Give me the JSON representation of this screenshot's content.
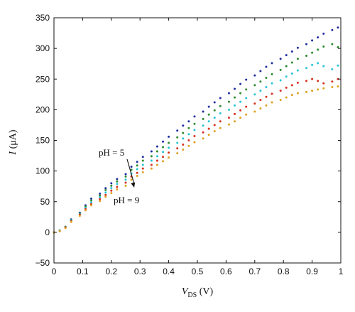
{
  "chart_data": {
    "type": "scatter",
    "title": "",
    "xlabel_main": "V",
    "xlabel_sub": "DS",
    "xlabel_unit": " (V)",
    "ylabel_main": "I",
    "ylabel_unit": " (μA)",
    "xlim": [
      0,
      1
    ],
    "ylim": [
      -50,
      350
    ],
    "xticks": [
      0,
      0.1,
      0.2,
      0.3,
      0.4,
      0.5,
      0.6,
      0.7,
      0.8,
      0.9,
      1
    ],
    "xtick_labels": [
      "0",
      "0.1",
      "0.2",
      "0.3",
      "0.4",
      "0.5",
      "0.6",
      "0.7",
      "0.8",
      "0.9",
      "1"
    ],
    "yticks": [
      -50,
      0,
      50,
      100,
      150,
      200,
      250,
      300,
      350
    ],
    "ytick_labels": [
      "−50",
      "0",
      "50",
      "100",
      "150",
      "200",
      "250",
      "300",
      "350"
    ],
    "grid": false,
    "annotations": {
      "ph_start": "pH = 5",
      "ph_end": "pH = 9"
    },
    "series": [
      {
        "color": "#1f2f9e",
        "x": [
          0,
          0.02,
          0.04,
          0.06,
          0.09,
          0.11,
          0.13,
          0.16,
          0.18,
          0.2,
          0.22,
          0.25,
          0.27,
          0.29,
          0.31,
          0.34,
          0.36,
          0.38,
          0.4,
          0.43,
          0.45,
          0.47,
          0.49,
          0.52,
          0.54,
          0.56,
          0.58,
          0.61,
          0.63,
          0.65,
          0.67,
          0.7,
          0.72,
          0.74,
          0.76,
          0.79,
          0.81,
          0.83,
          0.85,
          0.88,
          0.9,
          0.92,
          0.94,
          0.97,
          0.99
        ],
        "y": [
          0,
          3,
          9,
          21,
          32,
          44,
          55,
          63,
          72,
          80,
          87,
          95,
          107,
          115,
          123,
          132,
          140,
          148,
          156,
          166,
          174,
          181,
          189,
          197,
          205,
          212,
          219,
          227,
          234,
          242,
          249,
          256,
          263,
          270,
          276,
          283,
          289,
          295,
          301,
          307,
          313,
          318,
          324,
          330,
          334
        ]
      },
      {
        "color": "#2d8a2d",
        "x": [
          0,
          0.02,
          0.04,
          0.06,
          0.09,
          0.11,
          0.13,
          0.16,
          0.18,
          0.2,
          0.22,
          0.25,
          0.27,
          0.29,
          0.31,
          0.34,
          0.36,
          0.38,
          0.4,
          0.43,
          0.45,
          0.47,
          0.49,
          0.52,
          0.54,
          0.56,
          0.58,
          0.61,
          0.63,
          0.65,
          0.67,
          0.7,
          0.72,
          0.74,
          0.76,
          0.79,
          0.81,
          0.83,
          0.85,
          0.88,
          0.9,
          0.92,
          0.94,
          0.97,
          0.99
        ],
        "y": [
          0,
          3,
          9,
          20,
          31,
          42,
          52,
          60,
          69,
          76,
          83,
          91,
          102,
          109,
          117,
          124,
          132,
          139,
          146,
          155,
          162,
          170,
          177,
          185,
          192,
          199,
          206,
          213,
          220,
          227,
          233,
          240,
          246,
          252,
          258,
          265,
          271,
          277,
          283,
          288,
          293,
          298,
          303,
          307,
          302
        ]
      },
      {
        "color": "#25c4d6",
        "x": [
          0,
          0.02,
          0.04,
          0.06,
          0.09,
          0.11,
          0.13,
          0.16,
          0.18,
          0.2,
          0.22,
          0.25,
          0.27,
          0.29,
          0.31,
          0.34,
          0.36,
          0.38,
          0.4,
          0.43,
          0.45,
          0.47,
          0.49,
          0.52,
          0.54,
          0.56,
          0.58,
          0.61,
          0.63,
          0.65,
          0.67,
          0.7,
          0.72,
          0.74,
          0.76,
          0.79,
          0.81,
          0.83,
          0.85,
          0.88,
          0.9,
          0.92,
          0.94,
          0.97,
          0.99
        ],
        "y": [
          0,
          3,
          8,
          19,
          30,
          40,
          49,
          57,
          65,
          72,
          79,
          86,
          96,
          103,
          110,
          117,
          124,
          131,
          138,
          146,
          153,
          160,
          167,
          174,
          181,
          187,
          194,
          200,
          207,
          213,
          219,
          225,
          231,
          237,
          243,
          248,
          254,
          259,
          264,
          268,
          273,
          276,
          271,
          266,
          272
        ]
      },
      {
        "color": "#d63020",
        "x": [
          0,
          0.02,
          0.04,
          0.06,
          0.09,
          0.11,
          0.13,
          0.16,
          0.18,
          0.2,
          0.22,
          0.25,
          0.27,
          0.29,
          0.31,
          0.34,
          0.36,
          0.38,
          0.4,
          0.43,
          0.45,
          0.47,
          0.49,
          0.52,
          0.54,
          0.56,
          0.58,
          0.61,
          0.63,
          0.65,
          0.67,
          0.7,
          0.72,
          0.74,
          0.76,
          0.79,
          0.81,
          0.83,
          0.85,
          0.88,
          0.9,
          0.92,
          0.94,
          0.97,
          0.99
        ],
        "y": [
          0,
          2,
          8,
          18,
          29,
          38,
          46,
          54,
          61,
          68,
          74,
          81,
          91,
          97,
          104,
          110,
          117,
          123,
          130,
          137,
          143,
          150,
          157,
          163,
          169,
          175,
          181,
          187,
          193,
          199,
          205,
          210,
          216,
          221,
          226,
          231,
          236,
          240,
          244,
          247,
          250,
          247,
          243,
          246,
          250
        ]
      },
      {
        "color": "#e0a020",
        "x": [
          0,
          0.02,
          0.04,
          0.06,
          0.09,
          0.11,
          0.13,
          0.16,
          0.18,
          0.2,
          0.22,
          0.25,
          0.27,
          0.29,
          0.31,
          0.34,
          0.36,
          0.38,
          0.4,
          0.43,
          0.45,
          0.47,
          0.49,
          0.52,
          0.54,
          0.56,
          0.58,
          0.61,
          0.63,
          0.65,
          0.67,
          0.7,
          0.72,
          0.74,
          0.76,
          0.79,
          0.81,
          0.83,
          0.85,
          0.88,
          0.9,
          0.92,
          0.94,
          0.97,
          0.99
        ],
        "y": [
          0,
          2,
          7,
          17,
          27,
          36,
          44,
          51,
          58,
          64,
          70,
          76,
          86,
          92,
          98,
          104,
          110,
          116,
          122,
          129,
          135,
          141,
          147,
          153,
          159,
          165,
          170,
          176,
          181,
          187,
          192,
          197,
          202,
          207,
          212,
          216,
          220,
          224,
          227,
          229,
          231,
          233,
          235,
          237,
          238
        ]
      }
    ]
  }
}
